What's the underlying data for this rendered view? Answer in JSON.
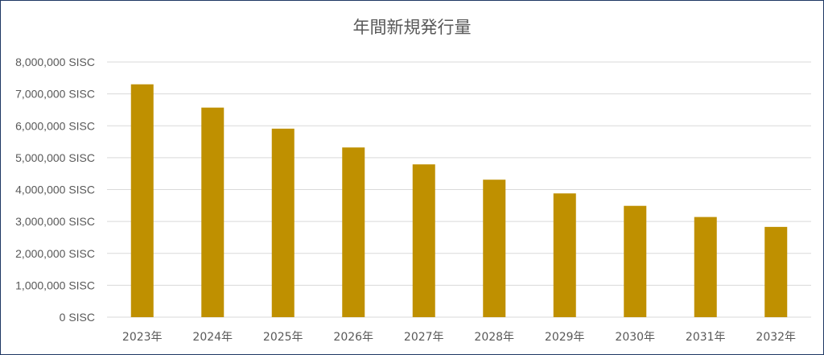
{
  "chart_data": {
    "type": "bar",
    "title": "年間新規発行量",
    "xlabel": "",
    "ylabel": "",
    "categories": [
      "2023年",
      "2024年",
      "2025年",
      "2026年",
      "2027年",
      "2028年",
      "2029年",
      "2030年",
      "2031年",
      "2032年"
    ],
    "values": [
      7300000,
      6570000,
      5910000,
      5320000,
      4790000,
      4310000,
      3880000,
      3490000,
      3140000,
      2830000
    ],
    "ylim": [
      0,
      8000000
    ],
    "yticks": [
      0,
      1000000,
      2000000,
      3000000,
      4000000,
      5000000,
      6000000,
      7000000,
      8000000
    ],
    "ytick_labels": [
      "0 SISC",
      "1,000,000 SISC",
      "2,000,000 SISC",
      "3,000,000 SISC",
      "4,000,000 SISC",
      "5,000,000 SISC",
      "6,000,000 SISC",
      "7,000,000 SISC",
      "8,000,000 SISC"
    ],
    "grid": true,
    "legend": "none",
    "bar_color": "#bf9000",
    "grid_color": "#d9d9d9",
    "border_color": "#1f3864"
  }
}
